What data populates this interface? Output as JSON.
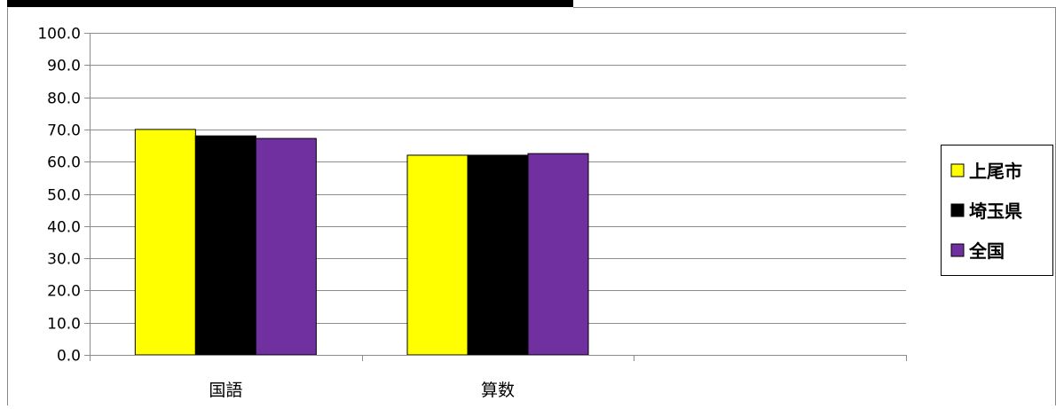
{
  "chart_data": {
    "type": "bar",
    "title": "",
    "xlabel": "",
    "ylabel": "",
    "categories": [
      "国語",
      "算数",
      ""
    ],
    "series": [
      {
        "name": "上尾市",
        "color": "#ffff00",
        "values": [
          70.0,
          62.0,
          null
        ]
      },
      {
        "name": "埼玉県",
        "color": "#000000",
        "values": [
          68.0,
          62.0,
          null
        ]
      },
      {
        "name": "全国",
        "color": "#7030a0",
        "values": [
          67.2,
          62.5,
          null
        ]
      }
    ],
    "ylim": [
      0,
      100
    ],
    "yticks": [
      0,
      10,
      20,
      30,
      40,
      50,
      60,
      70,
      80,
      90,
      100
    ],
    "tick_format_decimals": 1,
    "grid": true,
    "legend_position": "right"
  }
}
